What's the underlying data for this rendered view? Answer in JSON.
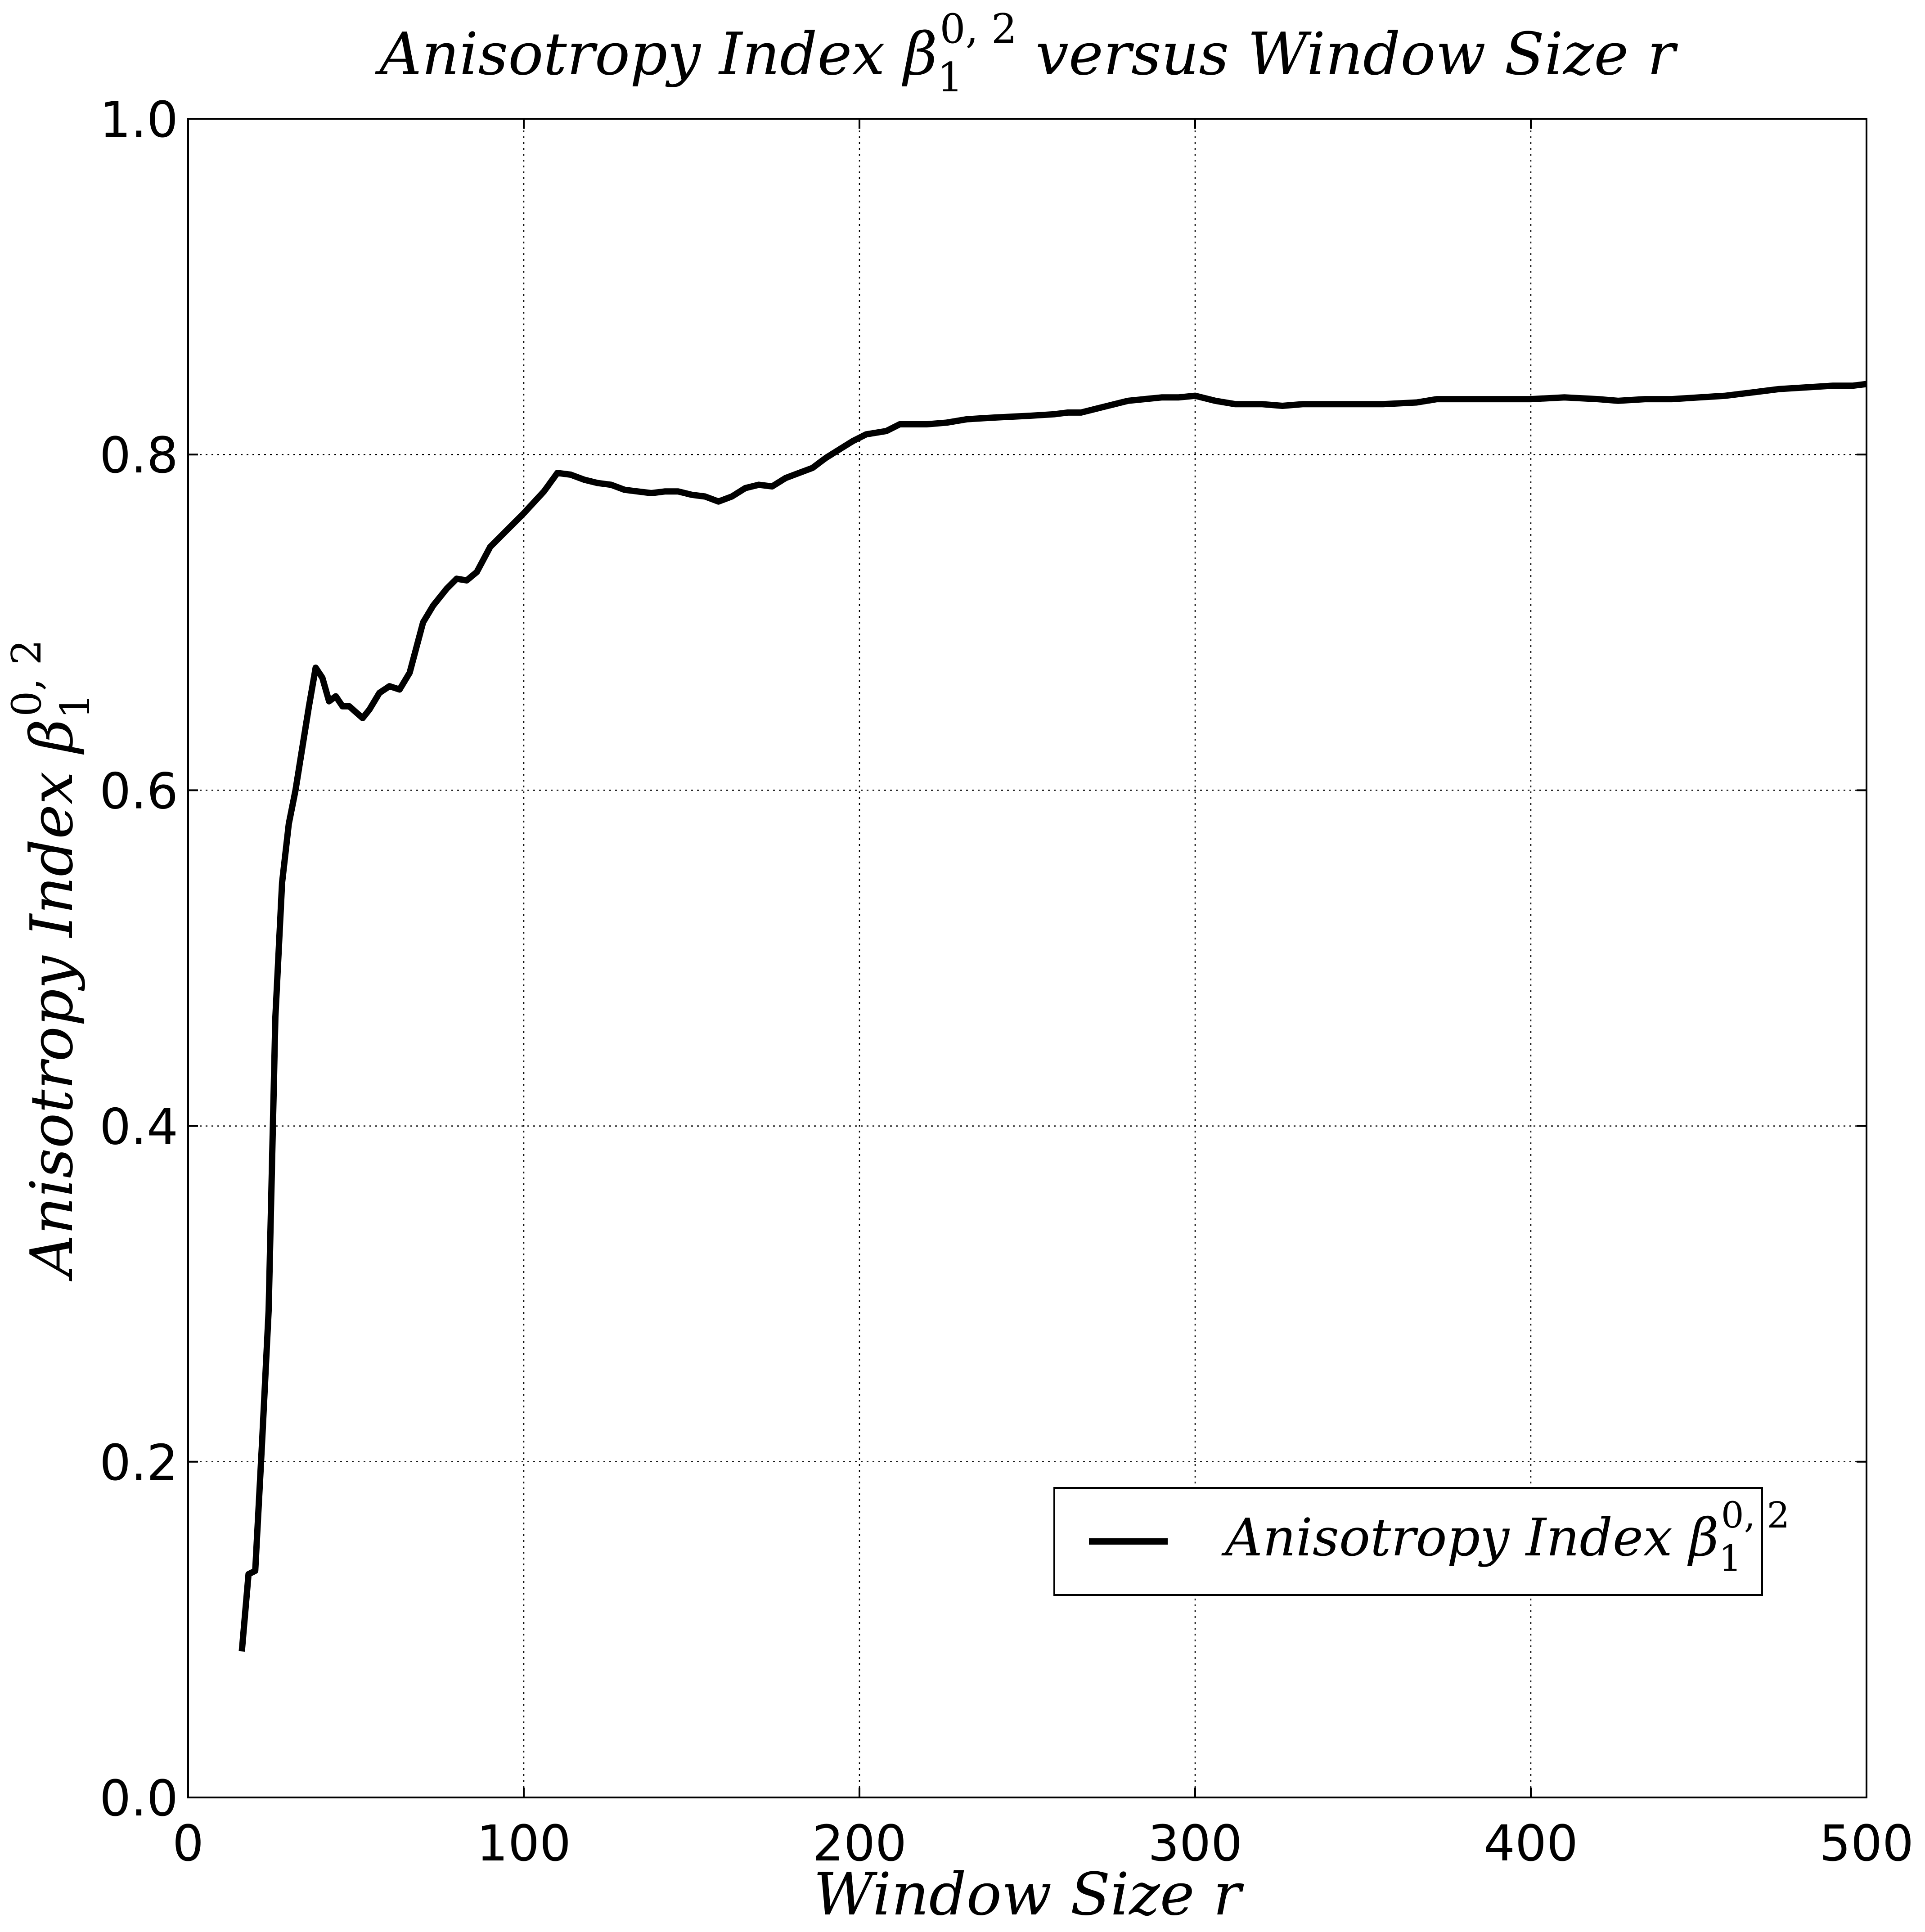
{
  "chart_data": {
    "type": "line",
    "title": "Anisotropy Index β₁^{0,2} versus Window Size r",
    "title_parts": {
      "prefix": "Anisotropy Index ",
      "sym": "β",
      "sub": "1",
      "sup": "0, 2",
      "suffix": " versus Window Size r"
    },
    "xlabel": "Window Size r",
    "ylabel": "Anisotropy Index β₁^{0,2}",
    "ylabel_parts": {
      "prefix": "Anisotropy Index ",
      "sym": "β",
      "sub": "1",
      "sup": "0, 2"
    },
    "xlim": [
      0,
      500
    ],
    "ylim": [
      0.0,
      1.0
    ],
    "xticks": [
      "0",
      "100",
      "200",
      "300",
      "400",
      "500"
    ],
    "yticks": [
      "0.0",
      "0.2",
      "0.4",
      "0.6",
      "0.8",
      "1.0"
    ],
    "grid": true,
    "legend_position": "lower-right",
    "series": [
      {
        "name": "Anisotropy Index β₁^{0,2}",
        "name_parts": {
          "prefix": "Anisotropy Index ",
          "sym": "β",
          "sub": "1",
          "sup": "0, 2"
        },
        "color": "#000000",
        "x": [
          16,
          18,
          20,
          22,
          24,
          26,
          28,
          30,
          32,
          34,
          36,
          38,
          40,
          42,
          44,
          46,
          48,
          52,
          54,
          57,
          60,
          63,
          66,
          70,
          73,
          77,
          80,
          83,
          86,
          90,
          95,
          100,
          106,
          110,
          114,
          118,
          122,
          126,
          130,
          134,
          138,
          142,
          146,
          150,
          154,
          158,
          162,
          166,
          170,
          174,
          178,
          182,
          186,
          190,
          194,
          198,
          202,
          208,
          212,
          220,
          226,
          232,
          240,
          250,
          258,
          262,
          266,
          272,
          280,
          290,
          295,
          300,
          306,
          312,
          320,
          326,
          332,
          338,
          346,
          356,
          366,
          372,
          380,
          390,
          400,
          410,
          420,
          426,
          434,
          442,
          450,
          458,
          466,
          474,
          482,
          490,
          496,
          500
        ],
        "values": [
          0.087,
          0.133,
          0.135,
          0.21,
          0.29,
          0.465,
          0.545,
          0.58,
          0.6,
          0.625,
          0.65,
          0.673,
          0.667,
          0.653,
          0.656,
          0.65,
          0.65,
          0.643,
          0.648,
          0.658,
          0.662,
          0.66,
          0.67,
          0.7,
          0.71,
          0.72,
          0.726,
          0.725,
          0.73,
          0.745,
          0.755,
          0.765,
          0.778,
          0.789,
          0.788,
          0.785,
          0.783,
          0.782,
          0.779,
          0.778,
          0.777,
          0.778,
          0.778,
          0.776,
          0.775,
          0.772,
          0.775,
          0.78,
          0.782,
          0.781,
          0.786,
          0.789,
          0.792,
          0.798,
          0.803,
          0.808,
          0.812,
          0.814,
          0.818,
          0.818,
          0.819,
          0.821,
          0.822,
          0.823,
          0.824,
          0.825,
          0.825,
          0.828,
          0.832,
          0.834,
          0.834,
          0.835,
          0.832,
          0.83,
          0.83,
          0.829,
          0.83,
          0.83,
          0.83,
          0.83,
          0.831,
          0.833,
          0.833,
          0.833,
          0.833,
          0.834,
          0.833,
          0.832,
          0.833,
          0.833,
          0.834,
          0.835,
          0.837,
          0.839,
          0.84,
          0.841,
          0.841,
          0.842
        ]
      }
    ]
  }
}
